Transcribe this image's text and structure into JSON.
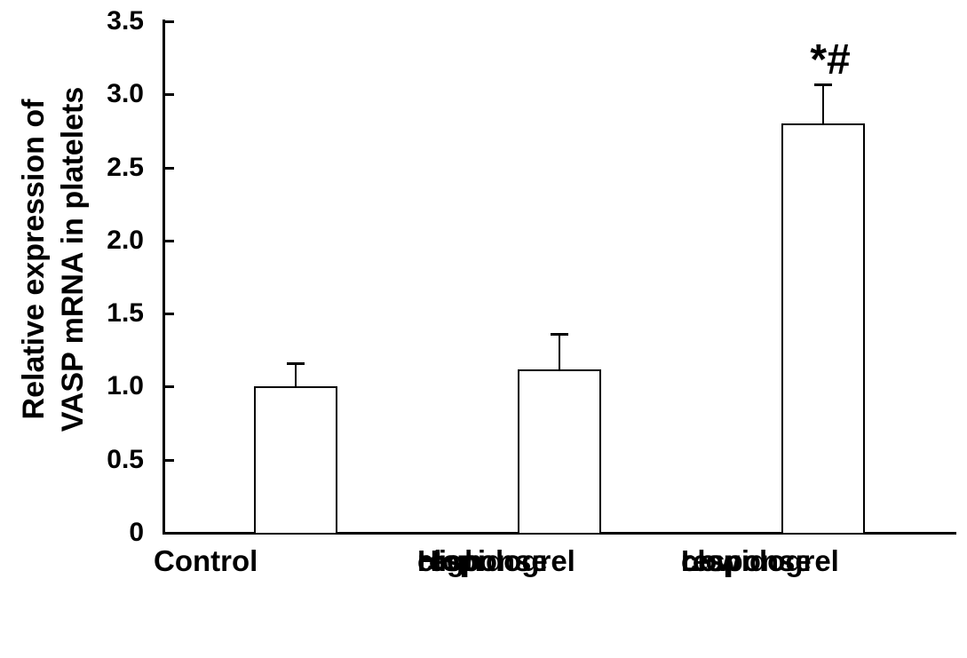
{
  "chart_data": {
    "type": "bar",
    "ylabel": "Relative expression of VASP mRNA in platelets",
    "ylabel_lines": [
      "Relative expression of",
      "VASP mRNA in platelets"
    ],
    "ylim": [
      0,
      3.5
    ],
    "ytick_labels": [
      "0",
      "0.5",
      "1.0",
      "1.5",
      "2.0",
      "2.5",
      "3.0",
      "3.5"
    ],
    "grid": false,
    "legend": null,
    "categories": [
      "Control",
      "High clopidogrel response",
      "Low clopidogrel response"
    ],
    "category_label_lines": [
      [
        "Control"
      ],
      [
        "High",
        "clopidogrel",
        "response"
      ],
      [
        "Low",
        "clopidogrel",
        "response"
      ]
    ],
    "values": [
      1.0,
      1.12,
      2.8
    ],
    "errors_up": [
      0.16,
      0.24,
      0.27
    ],
    "annotations": [
      {
        "category_index": 2,
        "text": "*#"
      }
    ],
    "colors": {
      "bar_fill": "#ffffff",
      "bar_border": "#000000",
      "axis": "#000000",
      "text": "#000000",
      "background": "#ffffff"
    }
  }
}
